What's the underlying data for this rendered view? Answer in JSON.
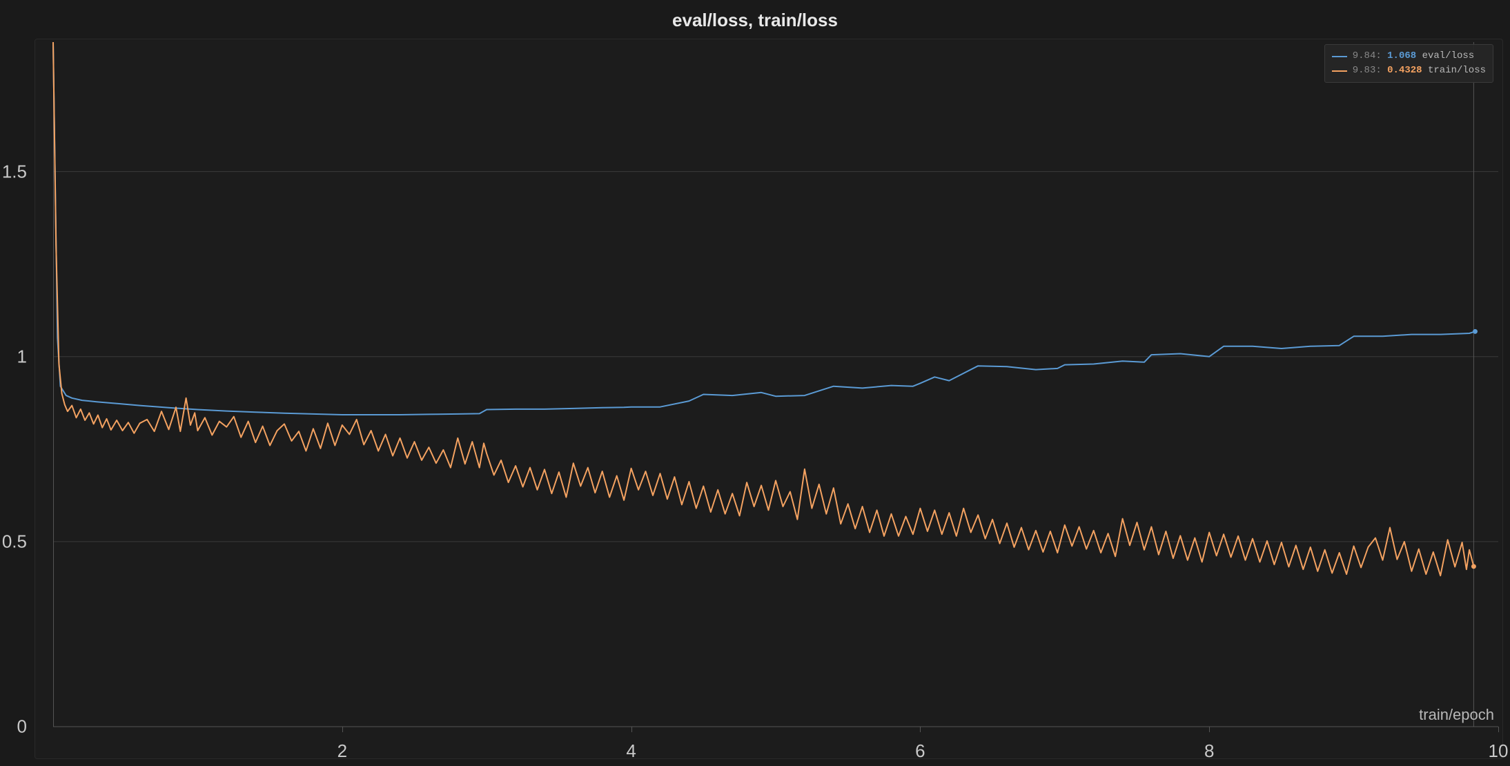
{
  "chart": {
    "type": "line",
    "title": "eval/loss, train/loss",
    "x_axis_title": "train/epoch",
    "background_color": "#1a1a1a",
    "panel_color": "#1c1c1c",
    "grid_color": "#3a3a3a",
    "axis_color": "#555555",
    "text_color": "#c9c9c9",
    "title_fontsize": 26,
    "tick_fontsize": 26,
    "xlim": [
      0,
      10
    ],
    "ylim": [
      0,
      1.85
    ],
    "yticks": [
      0,
      0.5,
      1,
      1.5
    ],
    "xticks": [
      2,
      4,
      6,
      8,
      10
    ],
    "hover_x": 9.83,
    "line_width": 2,
    "series": [
      {
        "id": "eval_loss",
        "label": "eval/loss",
        "color": "#5b9bd5",
        "legend_x": "9.84",
        "legend_value": "1.068",
        "end_marker": true,
        "data": [
          [
            0.0,
            1.85
          ],
          [
            0.03,
            1.05
          ],
          [
            0.05,
            0.92
          ],
          [
            0.09,
            0.895
          ],
          [
            0.13,
            0.888
          ],
          [
            0.2,
            0.882
          ],
          [
            0.3,
            0.878
          ],
          [
            0.45,
            0.873
          ],
          [
            0.6,
            0.868
          ],
          [
            0.8,
            0.862
          ],
          [
            1.0,
            0.857
          ],
          [
            1.2,
            0.853
          ],
          [
            1.4,
            0.85
          ],
          [
            1.6,
            0.847
          ],
          [
            1.8,
            0.845
          ],
          [
            2.0,
            0.843
          ],
          [
            2.2,
            0.843
          ],
          [
            2.4,
            0.843
          ],
          [
            2.6,
            0.844
          ],
          [
            2.8,
            0.845
          ],
          [
            2.95,
            0.846
          ],
          [
            3.0,
            0.857
          ],
          [
            3.2,
            0.858
          ],
          [
            3.4,
            0.858
          ],
          [
            3.6,
            0.86
          ],
          [
            3.8,
            0.862
          ],
          [
            3.95,
            0.863
          ],
          [
            4.0,
            0.864
          ],
          [
            4.2,
            0.864
          ],
          [
            4.4,
            0.88
          ],
          [
            4.5,
            0.898
          ],
          [
            4.7,
            0.895
          ],
          [
            4.9,
            0.903
          ],
          [
            5.0,
            0.893
          ],
          [
            5.2,
            0.895
          ],
          [
            5.4,
            0.92
          ],
          [
            5.6,
            0.915
          ],
          [
            5.8,
            0.922
          ],
          [
            5.95,
            0.92
          ],
          [
            6.0,
            0.928
          ],
          [
            6.1,
            0.945
          ],
          [
            6.2,
            0.935
          ],
          [
            6.4,
            0.975
          ],
          [
            6.6,
            0.973
          ],
          [
            6.8,
            0.965
          ],
          [
            6.95,
            0.968
          ],
          [
            7.0,
            0.978
          ],
          [
            7.2,
            0.98
          ],
          [
            7.4,
            0.988
          ],
          [
            7.55,
            0.985
          ],
          [
            7.6,
            1.005
          ],
          [
            7.8,
            1.008
          ],
          [
            8.0,
            1.0
          ],
          [
            8.1,
            1.028
          ],
          [
            8.3,
            1.028
          ],
          [
            8.5,
            1.022
          ],
          [
            8.7,
            1.028
          ],
          [
            8.9,
            1.03
          ],
          [
            9.0,
            1.055
          ],
          [
            9.2,
            1.055
          ],
          [
            9.4,
            1.06
          ],
          [
            9.6,
            1.06
          ],
          [
            9.8,
            1.063
          ],
          [
            9.84,
            1.068
          ]
        ]
      },
      {
        "id": "train_loss",
        "label": "train/loss",
        "color": "#f4a261",
        "legend_x": "9.83",
        "legend_value": "0.4328",
        "end_marker": true,
        "data": [
          [
            0.0,
            1.85
          ],
          [
            0.02,
            1.3
          ],
          [
            0.04,
            0.98
          ],
          [
            0.06,
            0.9
          ],
          [
            0.08,
            0.87
          ],
          [
            0.1,
            0.852
          ],
          [
            0.13,
            0.868
          ],
          [
            0.16,
            0.835
          ],
          [
            0.19,
            0.858
          ],
          [
            0.22,
            0.828
          ],
          [
            0.25,
            0.848
          ],
          [
            0.28,
            0.818
          ],
          [
            0.31,
            0.842
          ],
          [
            0.34,
            0.808
          ],
          [
            0.37,
            0.832
          ],
          [
            0.4,
            0.802
          ],
          [
            0.44,
            0.828
          ],
          [
            0.48,
            0.8
          ],
          [
            0.52,
            0.822
          ],
          [
            0.56,
            0.793
          ],
          [
            0.6,
            0.82
          ],
          [
            0.65,
            0.83
          ],
          [
            0.7,
            0.798
          ],
          [
            0.75,
            0.852
          ],
          [
            0.8,
            0.803
          ],
          [
            0.85,
            0.863
          ],
          [
            0.88,
            0.798
          ],
          [
            0.92,
            0.888
          ],
          [
            0.95,
            0.815
          ],
          [
            0.98,
            0.848
          ],
          [
            1.0,
            0.8
          ],
          [
            1.05,
            0.835
          ],
          [
            1.1,
            0.788
          ],
          [
            1.15,
            0.825
          ],
          [
            1.2,
            0.81
          ],
          [
            1.25,
            0.838
          ],
          [
            1.3,
            0.782
          ],
          [
            1.35,
            0.825
          ],
          [
            1.4,
            0.768
          ],
          [
            1.45,
            0.812
          ],
          [
            1.5,
            0.76
          ],
          [
            1.55,
            0.8
          ],
          [
            1.6,
            0.818
          ],
          [
            1.65,
            0.772
          ],
          [
            1.7,
            0.798
          ],
          [
            1.75,
            0.745
          ],
          [
            1.8,
            0.805
          ],
          [
            1.85,
            0.752
          ],
          [
            1.9,
            0.82
          ],
          [
            1.95,
            0.76
          ],
          [
            2.0,
            0.815
          ],
          [
            2.05,
            0.79
          ],
          [
            2.1,
            0.83
          ],
          [
            2.15,
            0.762
          ],
          [
            2.2,
            0.8
          ],
          [
            2.25,
            0.745
          ],
          [
            2.3,
            0.79
          ],
          [
            2.35,
            0.732
          ],
          [
            2.4,
            0.78
          ],
          [
            2.45,
            0.726
          ],
          [
            2.5,
            0.77
          ],
          [
            2.55,
            0.72
          ],
          [
            2.6,
            0.755
          ],
          [
            2.65,
            0.712
          ],
          [
            2.7,
            0.748
          ],
          [
            2.75,
            0.7
          ],
          [
            2.8,
            0.78
          ],
          [
            2.85,
            0.71
          ],
          [
            2.9,
            0.77
          ],
          [
            2.95,
            0.7
          ],
          [
            2.98,
            0.766
          ],
          [
            3.0,
            0.738
          ],
          [
            3.05,
            0.68
          ],
          [
            3.1,
            0.72
          ],
          [
            3.15,
            0.66
          ],
          [
            3.2,
            0.705
          ],
          [
            3.25,
            0.648
          ],
          [
            3.3,
            0.7
          ],
          [
            3.35,
            0.64
          ],
          [
            3.4,
            0.695
          ],
          [
            3.45,
            0.63
          ],
          [
            3.5,
            0.688
          ],
          [
            3.55,
            0.62
          ],
          [
            3.6,
            0.712
          ],
          [
            3.65,
            0.65
          ],
          [
            3.7,
            0.7
          ],
          [
            3.75,
            0.632
          ],
          [
            3.8,
            0.69
          ],
          [
            3.85,
            0.62
          ],
          [
            3.9,
            0.678
          ],
          [
            3.95,
            0.612
          ],
          [
            4.0,
            0.698
          ],
          [
            4.05,
            0.64
          ],
          [
            4.1,
            0.69
          ],
          [
            4.15,
            0.625
          ],
          [
            4.2,
            0.684
          ],
          [
            4.25,
            0.615
          ],
          [
            4.3,
            0.675
          ],
          [
            4.35,
            0.6
          ],
          [
            4.4,
            0.662
          ],
          [
            4.45,
            0.59
          ],
          [
            4.5,
            0.65
          ],
          [
            4.55,
            0.58
          ],
          [
            4.6,
            0.64
          ],
          [
            4.65,
            0.575
          ],
          [
            4.7,
            0.63
          ],
          [
            4.75,
            0.57
          ],
          [
            4.8,
            0.66
          ],
          [
            4.85,
            0.595
          ],
          [
            4.9,
            0.652
          ],
          [
            4.95,
            0.585
          ],
          [
            5.0,
            0.665
          ],
          [
            5.05,
            0.595
          ],
          [
            5.1,
            0.635
          ],
          [
            5.15,
            0.56
          ],
          [
            5.2,
            0.696
          ],
          [
            5.25,
            0.59
          ],
          [
            5.3,
            0.655
          ],
          [
            5.35,
            0.575
          ],
          [
            5.4,
            0.645
          ],
          [
            5.45,
            0.548
          ],
          [
            5.5,
            0.602
          ],
          [
            5.55,
            0.535
          ],
          [
            5.6,
            0.595
          ],
          [
            5.65,
            0.525
          ],
          [
            5.7,
            0.585
          ],
          [
            5.75,
            0.515
          ],
          [
            5.8,
            0.575
          ],
          [
            5.85,
            0.515
          ],
          [
            5.9,
            0.568
          ],
          [
            5.95,
            0.52
          ],
          [
            6.0,
            0.59
          ],
          [
            6.05,
            0.528
          ],
          [
            6.1,
            0.585
          ],
          [
            6.15,
            0.52
          ],
          [
            6.2,
            0.578
          ],
          [
            6.25,
            0.515
          ],
          [
            6.3,
            0.59
          ],
          [
            6.35,
            0.525
          ],
          [
            6.4,
            0.572
          ],
          [
            6.45,
            0.508
          ],
          [
            6.5,
            0.56
          ],
          [
            6.55,
            0.495
          ],
          [
            6.6,
            0.55
          ],
          [
            6.65,
            0.485
          ],
          [
            6.7,
            0.538
          ],
          [
            6.75,
            0.478
          ],
          [
            6.8,
            0.53
          ],
          [
            6.85,
            0.472
          ],
          [
            6.9,
            0.528
          ],
          [
            6.95,
            0.47
          ],
          [
            7.0,
            0.545
          ],
          [
            7.05,
            0.488
          ],
          [
            7.1,
            0.54
          ],
          [
            7.15,
            0.48
          ],
          [
            7.2,
            0.53
          ],
          [
            7.25,
            0.47
          ],
          [
            7.3,
            0.522
          ],
          [
            7.35,
            0.46
          ],
          [
            7.4,
            0.562
          ],
          [
            7.45,
            0.49
          ],
          [
            7.5,
            0.552
          ],
          [
            7.55,
            0.478
          ],
          [
            7.6,
            0.54
          ],
          [
            7.65,
            0.465
          ],
          [
            7.7,
            0.528
          ],
          [
            7.75,
            0.455
          ],
          [
            7.8,
            0.516
          ],
          [
            7.85,
            0.45
          ],
          [
            7.9,
            0.51
          ],
          [
            7.95,
            0.445
          ],
          [
            8.0,
            0.525
          ],
          [
            8.05,
            0.462
          ],
          [
            8.1,
            0.52
          ],
          [
            8.15,
            0.458
          ],
          [
            8.2,
            0.515
          ],
          [
            8.25,
            0.45
          ],
          [
            8.3,
            0.508
          ],
          [
            8.35,
            0.445
          ],
          [
            8.4,
            0.502
          ],
          [
            8.45,
            0.438
          ],
          [
            8.5,
            0.498
          ],
          [
            8.55,
            0.432
          ],
          [
            8.6,
            0.49
          ],
          [
            8.65,
            0.425
          ],
          [
            8.7,
            0.485
          ],
          [
            8.75,
            0.42
          ],
          [
            8.8,
            0.478
          ],
          [
            8.85,
            0.415
          ],
          [
            8.9,
            0.47
          ],
          [
            8.95,
            0.412
          ],
          [
            9.0,
            0.488
          ],
          [
            9.05,
            0.43
          ],
          [
            9.1,
            0.485
          ],
          [
            9.15,
            0.51
          ],
          [
            9.2,
            0.45
          ],
          [
            9.25,
            0.538
          ],
          [
            9.3,
            0.452
          ],
          [
            9.35,
            0.5
          ],
          [
            9.4,
            0.42
          ],
          [
            9.45,
            0.48
          ],
          [
            9.5,
            0.412
          ],
          [
            9.55,
            0.472
          ],
          [
            9.6,
            0.408
          ],
          [
            9.65,
            0.505
          ],
          [
            9.7,
            0.432
          ],
          [
            9.75,
            0.498
          ],
          [
            9.78,
            0.425
          ],
          [
            9.8,
            0.478
          ],
          [
            9.83,
            0.433
          ]
        ]
      }
    ]
  },
  "legend": {
    "background": "rgba(38,38,38,0.92)",
    "border": "#3a3a3a",
    "fontsize": 14
  }
}
